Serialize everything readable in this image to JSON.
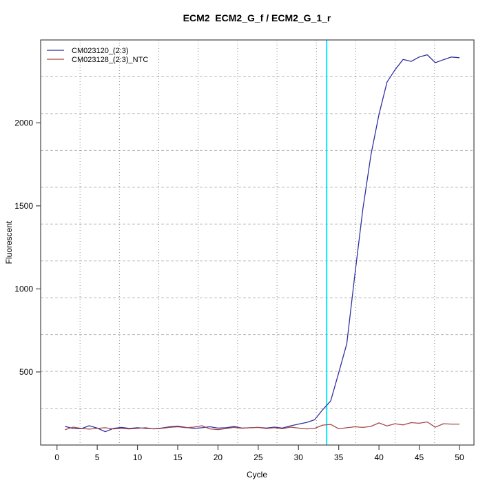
{
  "title": "ECM2  ECM2_G_f / ECM2_G_1_r",
  "chart_data": {
    "type": "line",
    "title": "ECM2  ECM2_G_f / ECM2_G_1_r",
    "xlabel": "Cycle",
    "ylabel": "Fluorescent",
    "xlim": [
      -2.03,
      51.8
    ],
    "ylim": [
      60,
      2499
    ],
    "x_ticks": [
      0,
      5,
      10,
      15,
      20,
      25,
      30,
      35,
      40,
      45,
      50
    ],
    "y_ticks": [
      500,
      1000,
      1500,
      2000
    ],
    "grid": {
      "nx": 11,
      "ny": 11,
      "v_style": "dotted",
      "h_style": "dashed"
    },
    "legend_position": "top-left",
    "threshold_line": {
      "x": 33.5,
      "color": "#00eaff"
    },
    "colors": {
      "axis": "#444444",
      "grid_v": "#8a8a8a",
      "grid_h": "#b8b8b8"
    },
    "x": [
      1,
      2,
      3,
      4,
      5,
      6,
      7,
      8,
      9,
      10,
      11,
      12,
      13,
      14,
      15,
      16,
      17,
      18,
      19,
      20,
      21,
      22,
      23,
      24,
      25,
      26,
      27,
      28,
      29,
      30,
      31,
      32,
      33,
      34,
      35,
      36,
      37,
      38,
      39,
      40,
      41,
      42,
      43,
      44,
      45,
      46,
      47,
      48,
      49,
      50
    ],
    "series": [
      {
        "name": "CM023120_(2:3)",
        "color": "#2f2f9e",
        "values": [
          172,
          160,
          158,
          176,
          162,
          140,
          160,
          166,
          160,
          164,
          160,
          158,
          162,
          170,
          174,
          166,
          160,
          164,
          170,
          162,
          164,
          171,
          162,
          164,
          166,
          162,
          168,
          162,
          175,
          186,
          196,
          212,
          272,
          325,
          495,
          670,
          1085,
          1480,
          1805,
          2050,
          2245,
          2320,
          2382,
          2370,
          2396,
          2410,
          2362,
          2380,
          2396,
          2392
        ]
      },
      {
        "name": "CM023128_(2:3)_NTC",
        "color": "#a34747",
        "values": [
          152,
          168,
          160,
          156,
          160,
          164,
          157,
          160,
          157,
          160,
          164,
          157,
          160,
          166,
          170,
          164,
          168,
          176,
          157,
          153,
          159,
          166,
          161,
          164,
          166,
          159,
          164,
          158,
          168,
          162,
          157,
          160,
          180,
          184,
          158,
          164,
          170,
          166,
          172,
          193,
          175,
          188,
          181,
          195,
          191,
          199,
          167,
          188,
          186,
          186
        ]
      }
    ]
  }
}
